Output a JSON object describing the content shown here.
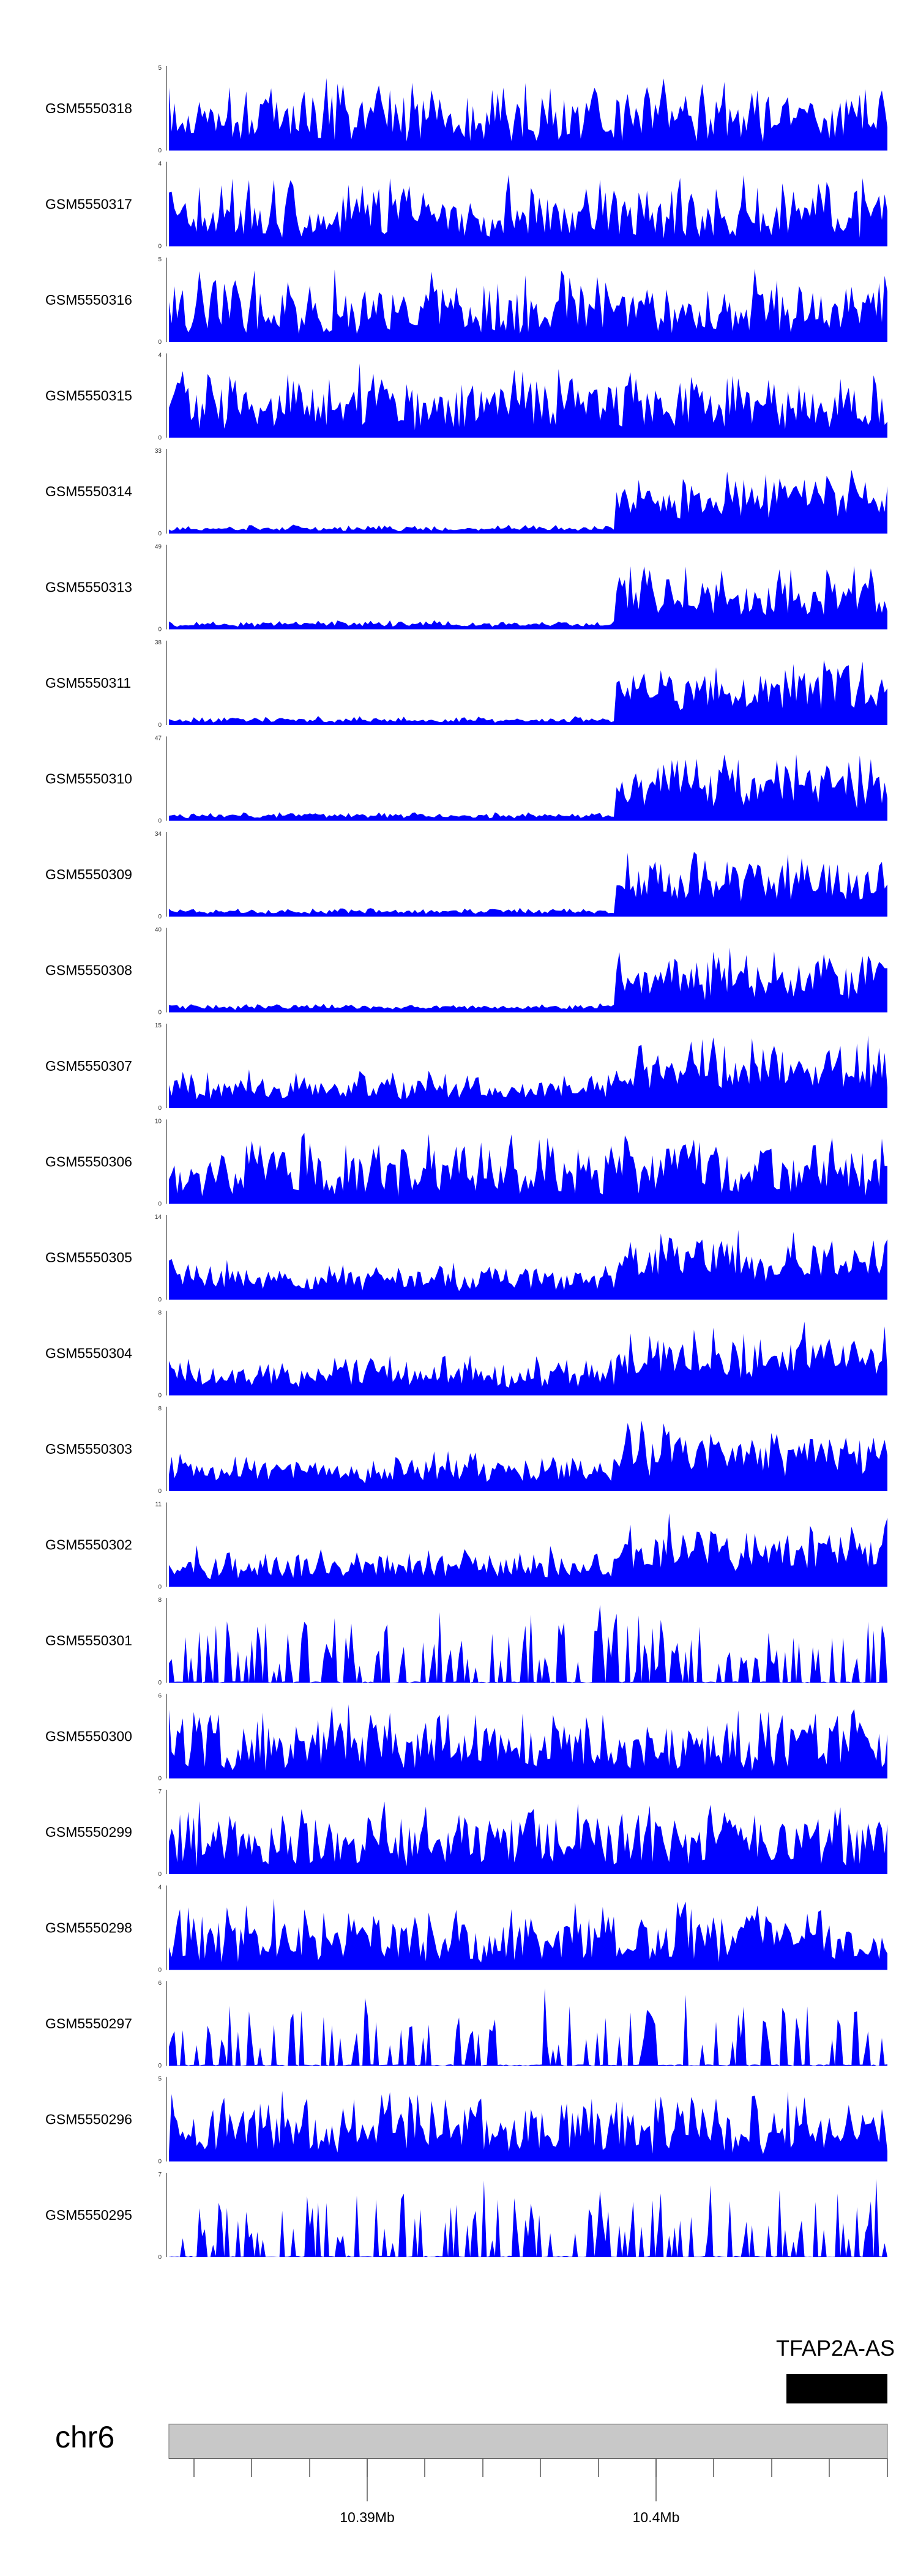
{
  "chart_data": {
    "type": "area",
    "layout": "stacked-genome-tracks",
    "fill_color": "#0000ff",
    "tracks": [
      {
        "name": "GSM5550318",
        "ymin": 0,
        "ymax": 5,
        "seed": 318,
        "profile": "uniform"
      },
      {
        "name": "GSM5550317",
        "ymin": 0,
        "ymax": 4,
        "seed": 317,
        "profile": "uniform"
      },
      {
        "name": "GSM5550316",
        "ymin": 0,
        "ymax": 5,
        "seed": 316,
        "profile": "uniform"
      },
      {
        "name": "GSM5550315",
        "ymin": 0,
        "ymax": 4,
        "seed": 315,
        "profile": "uniform"
      },
      {
        "name": "GSM5550314",
        "ymin": 0,
        "ymax": 33,
        "seed": 314,
        "profile": "right-heavy"
      },
      {
        "name": "GSM5550313",
        "ymin": 0,
        "ymax": 49,
        "seed": 313,
        "profile": "right-heavy"
      },
      {
        "name": "GSM5550311",
        "ymin": 0,
        "ymax": 38,
        "seed": 311,
        "profile": "right-heavy"
      },
      {
        "name": "GSM5550310",
        "ymin": 0,
        "ymax": 47,
        "seed": 310,
        "profile": "right-heavy"
      },
      {
        "name": "GSM5550309",
        "ymin": 0,
        "ymax": 34,
        "seed": 309,
        "profile": "right-heavy"
      },
      {
        "name": "GSM5550308",
        "ymin": 0,
        "ymax": 40,
        "seed": 308,
        "profile": "right-heavy"
      },
      {
        "name": "GSM5550307",
        "ymin": 0,
        "ymax": 15,
        "seed": 307,
        "profile": "right-medium"
      },
      {
        "name": "GSM5550306",
        "ymin": 0,
        "ymax": 10,
        "seed": 306,
        "profile": "uniform"
      },
      {
        "name": "GSM5550305",
        "ymin": 0,
        "ymax": 14,
        "seed": 305,
        "profile": "right-medium"
      },
      {
        "name": "GSM5550304",
        "ymin": 0,
        "ymax": 8,
        "seed": 304,
        "profile": "right-medium"
      },
      {
        "name": "GSM5550303",
        "ymin": 0,
        "ymax": 8,
        "seed": 303,
        "profile": "right-medium"
      },
      {
        "name": "GSM5550302",
        "ymin": 0,
        "ymax": 11,
        "seed": 302,
        "profile": "right-medium"
      },
      {
        "name": "GSM5550301",
        "ymin": 0,
        "ymax": 8,
        "seed": 301,
        "profile": "sparse"
      },
      {
        "name": "GSM5550300",
        "ymin": 0,
        "ymax": 6,
        "seed": 300,
        "profile": "uniform"
      },
      {
        "name": "GSM5550299",
        "ymin": 0,
        "ymax": 7,
        "seed": 299,
        "profile": "uniform"
      },
      {
        "name": "GSM5550298",
        "ymin": 0,
        "ymax": 4,
        "seed": 298,
        "profile": "uniform"
      },
      {
        "name": "GSM5550297",
        "ymin": 0,
        "ymax": 6,
        "seed": 297,
        "profile": "sparse"
      },
      {
        "name": "GSM5550296",
        "ymin": 0,
        "ymax": 5,
        "seed": 296,
        "profile": "uniform"
      },
      {
        "name": "GSM5550295",
        "ymin": 0,
        "ymax": 7,
        "seed": 295,
        "profile": "sparse"
      }
    ],
    "gene_annotation": {
      "label": "TFAP2A-AS",
      "color": "#000000"
    },
    "ideogram": {
      "chromosome": "chr6",
      "color": "#c8c8c8"
    },
    "x_axis": {
      "major_ticks": [
        {
          "position": 10.39,
          "label": "10.39Mb"
        },
        {
          "position": 10.4,
          "label": "10.4Mb"
        }
      ]
    }
  }
}
